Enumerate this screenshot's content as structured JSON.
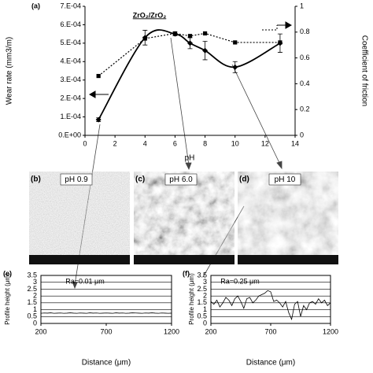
{
  "chart_data": [
    {
      "type": "line",
      "panel_label": "(a)",
      "annotation": "ZrO₂/ZrO₂",
      "x_label": "pH",
      "y_label": "Wear rate (mm3/m)",
      "y2_label": "Coefficient of friction",
      "x": [
        0.9,
        4,
        6,
        7,
        8,
        10,
        13
      ],
      "xlim": [
        0,
        14
      ],
      "xticks": [
        0,
        2,
        4,
        6,
        8,
        10,
        12,
        14
      ],
      "ylim": [
        0,
        0.0007
      ],
      "yticks": [
        {
          "value": 0,
          "label": "0.E+00"
        },
        {
          "value": 0.0001,
          "label": "1.E-04"
        },
        {
          "value": 0.0002,
          "label": "2.E-04"
        },
        {
          "value": 0.0003,
          "label": "3.E-04"
        },
        {
          "value": 0.0004,
          "label": "4.E-04"
        },
        {
          "value": 0.0005,
          "label": "5.E-04"
        },
        {
          "value": 0.0006,
          "label": "6.E-04"
        },
        {
          "value": 0.0007,
          "label": "7.E-04"
        }
      ],
      "y2lim": [
        0,
        1
      ],
      "y2ticks": [
        0,
        0.2,
        0.4,
        0.6,
        0.8,
        1
      ],
      "series": [
        {
          "color": "#000000",
          "style": "solid",
          "marker": "diamond",
          "smooth": true,
          "values": [
            8.5e-05,
            0.00053,
            0.00055,
            0.0005,
            0.00046,
            0.00037,
            0.0005
          ],
          "errors": [
            1e-05,
            4e-05,
            1e-05,
            3e-05,
            5e-05,
            3e-05,
            5e-05
          ]
        },
        {
          "color": "#000000",
          "style": "dotted",
          "marker": "square",
          "axis": "y2",
          "values": [
            0.46,
            0.75,
            0.79,
            0.77,
            0.79,
            0.72,
            0.72
          ]
        }
      ]
    },
    {
      "type": "line",
      "panel_label": "(e)",
      "annotation": "Ra=0.01 μm",
      "x_label": "Distance (μm)",
      "y_label": "Profile height (μm)",
      "grid": true,
      "x": [
        200,
        225,
        250,
        275,
        300,
        325,
        350,
        375,
        400,
        425,
        450,
        475,
        500,
        525,
        550,
        575,
        600,
        625,
        650,
        675,
        700,
        725,
        750,
        775,
        800,
        825,
        850,
        875,
        900,
        925,
        950,
        975,
        1000,
        1025,
        1050,
        1075,
        1100,
        1125,
        1150,
        1175,
        1200
      ],
      "xlim": [
        200,
        1200
      ],
      "xticks": [
        200,
        700,
        1200
      ],
      "ylim": [
        0,
        3.5
      ],
      "yticks": [
        0,
        0.5,
        1,
        1.5,
        2,
        2.5,
        3,
        3.5
      ],
      "series": [
        {
          "color": "#000000",
          "values": [
            0.74,
            0.76,
            0.75,
            0.77,
            0.74,
            0.75,
            0.76,
            0.74,
            0.75,
            0.77,
            0.75,
            0.74,
            0.76,
            0.75,
            0.74,
            0.77,
            0.75,
            0.76,
            0.74,
            0.75,
            0.76,
            0.75,
            0.74,
            0.77,
            0.75,
            0.76,
            0.74,
            0.75,
            0.77,
            0.76,
            0.75,
            0.74,
            0.76,
            0.75,
            0.77,
            0.75,
            0.74,
            0.76,
            0.75,
            0.74,
            0.75
          ]
        }
      ]
    },
    {
      "type": "line",
      "panel_label": "(f)",
      "annotation": "Ra=0.25 μm",
      "x_label": "Distance (μm)",
      "y_label": "Profile height (μm)",
      "grid": true,
      "x": [
        200,
        225,
        250,
        275,
        300,
        325,
        350,
        375,
        400,
        425,
        450,
        475,
        500,
        525,
        550,
        575,
        600,
        625,
        650,
        675,
        700,
        725,
        750,
        775,
        800,
        825,
        850,
        875,
        900,
        925,
        950,
        975,
        1000,
        1025,
        1050,
        1075,
        1100,
        1125,
        1150,
        1175,
        1200
      ],
      "xlim": [
        200,
        1200
      ],
      "xticks": [
        200,
        700,
        1200
      ],
      "ylim": [
        0,
        3.5
      ],
      "yticks": [
        0,
        0.5,
        1,
        1.5,
        2,
        2.5,
        3,
        3.5
      ],
      "series": [
        {
          "color": "#000000",
          "values": [
            1.6,
            1.4,
            1.7,
            1.2,
            1.5,
            1.9,
            1.7,
            1.3,
            1.8,
            2.0,
            1.6,
            1.1,
            1.8,
            1.9,
            1.5,
            1.7,
            2.0,
            2.1,
            2.2,
            2.4,
            2.3,
            1.6,
            1.7,
            1.5,
            1.2,
            1.6,
            0.8,
            0.3,
            1.4,
            1.6,
            0.5,
            1.3,
            1.0,
            1.5,
            1.6,
            1.4,
            1.8,
            1.5,
            1.7,
            1.3,
            1.5
          ]
        }
      ]
    }
  ],
  "images": [
    {
      "label": "(b)",
      "caption": "pH 0.9"
    },
    {
      "label": "(c)",
      "caption": "pH 6.0"
    },
    {
      "label": "(d)",
      "caption": "pH 10"
    }
  ]
}
